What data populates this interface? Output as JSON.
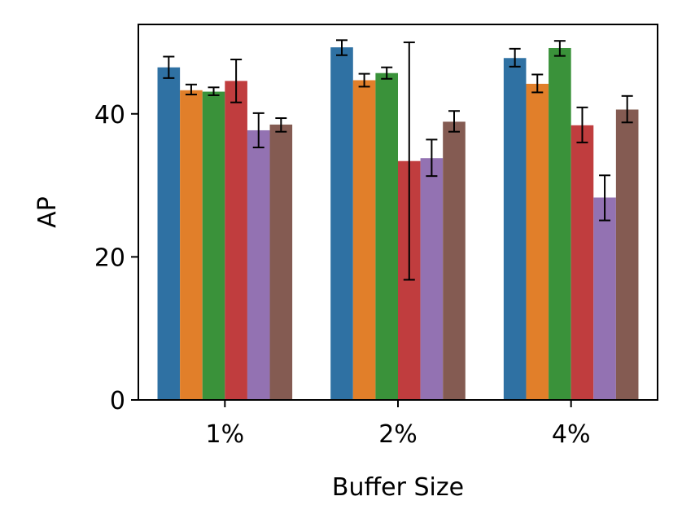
{
  "chart_data": {
    "type": "bar",
    "title": "",
    "xlabel": "Buffer Size",
    "ylabel": "AP",
    "categories": [
      "1%",
      "2%",
      "4%"
    ],
    "ylim": [
      0,
      52.5
    ],
    "yticks": [
      0,
      20,
      40
    ],
    "grid": false,
    "legend": "none",
    "series": [
      {
        "color": "#2f71a3",
        "values": [
          46.5,
          49.3,
          47.8
        ],
        "err_low": [
          45.0,
          48.2,
          46.6
        ],
        "err_high": [
          48.0,
          50.3,
          49.1
        ]
      },
      {
        "color": "#e17f2a",
        "values": [
          43.3,
          44.7,
          44.2
        ],
        "err_low": [
          42.7,
          43.8,
          43.0
        ],
        "err_high": [
          44.1,
          45.6,
          45.5
        ]
      },
      {
        "color": "#3a923a",
        "values": [
          43.1,
          45.7,
          49.2
        ],
        "err_low": [
          42.6,
          44.9,
          48.1
        ],
        "err_high": [
          43.7,
          46.5,
          50.2
        ]
      },
      {
        "color": "#c03d3e",
        "values": [
          44.6,
          33.4,
          38.4
        ],
        "err_low": [
          41.6,
          16.8,
          36.0
        ],
        "err_high": [
          47.6,
          50.0,
          40.9
        ]
      },
      {
        "color": "#9372b2",
        "values": [
          37.7,
          33.8,
          28.3
        ],
        "err_low": [
          35.3,
          31.3,
          25.1
        ],
        "err_high": [
          40.1,
          36.4,
          31.4
        ]
      },
      {
        "color": "#845b52",
        "values": [
          38.5,
          38.9,
          40.6
        ],
        "err_low": [
          37.5,
          37.5,
          38.8
        ],
        "err_high": [
          39.4,
          40.4,
          42.5
        ]
      }
    ]
  }
}
